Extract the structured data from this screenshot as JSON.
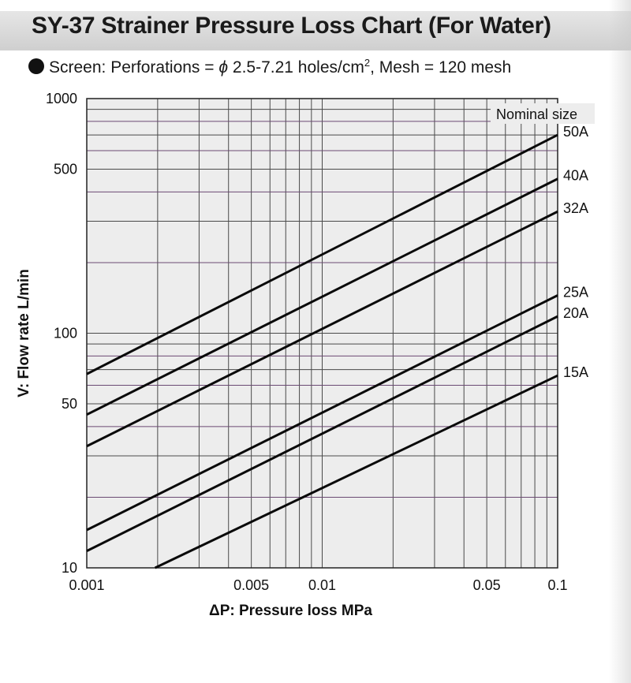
{
  "page": {
    "title": "SY-37 Strainer Pressure Loss Chart (For Water)",
    "subtitle_prefix": "Screen: Perforations = ",
    "subtitle_phi": "ϕ",
    "subtitle_mid": " 2.5-7.21 holes/cm",
    "subtitle_sup": "2",
    "subtitle_suffix": ", Mesh = 120 mesh"
  },
  "colors": {
    "plot_background": "#ededed",
    "grid": "#4a4a4a",
    "grid_purple": "#6b4a73",
    "series_line": "#0a0a0a",
    "title_band": "#d9d9d9"
  },
  "chart_data": {
    "type": "line",
    "title": "SY-37 Strainer Pressure Loss Chart (For Water)",
    "xlabel": "ΔP: Pressure loss MPa",
    "ylabel": "V: Flow rate L/min",
    "xscale": "log",
    "yscale": "log",
    "xlim": [
      0.001,
      0.1
    ],
    "ylim": [
      10,
      1000
    ],
    "grid": true,
    "x_ticks": [
      {
        "value": 0.001,
        "label": "0.001"
      },
      {
        "value": 0.005,
        "label": "0.005"
      },
      {
        "value": 0.01,
        "label": "0.01"
      },
      {
        "value": 0.05,
        "label": "0.05"
      },
      {
        "value": 0.1,
        "label": "0.1"
      }
    ],
    "y_ticks": [
      {
        "value": 1000,
        "label": "1000"
      },
      {
        "value": 500,
        "label": "500"
      },
      {
        "value": 100,
        "label": "100"
      },
      {
        "value": 50,
        "label": "50"
      },
      {
        "value": 10,
        "label": "10"
      }
    ],
    "legend_title": "Nominal size",
    "series": [
      {
        "name": "50A",
        "x": [
          0.001,
          0.1
        ],
        "y": [
          67,
          700
        ]
      },
      {
        "name": "40A",
        "x": [
          0.001,
          0.1
        ],
        "y": [
          45,
          455
        ]
      },
      {
        "name": "32A",
        "x": [
          0.001,
          0.1
        ],
        "y": [
          33,
          330
        ]
      },
      {
        "name": "25A",
        "x": [
          0.001,
          0.1
        ],
        "y": [
          14.5,
          145
        ]
      },
      {
        "name": "20A",
        "x": [
          0.001,
          0.1
        ],
        "y": [
          11.8,
          118
        ]
      },
      {
        "name": "15A",
        "x": [
          0.00195,
          0.1
        ],
        "y": [
          10,
          66
        ]
      }
    ]
  }
}
